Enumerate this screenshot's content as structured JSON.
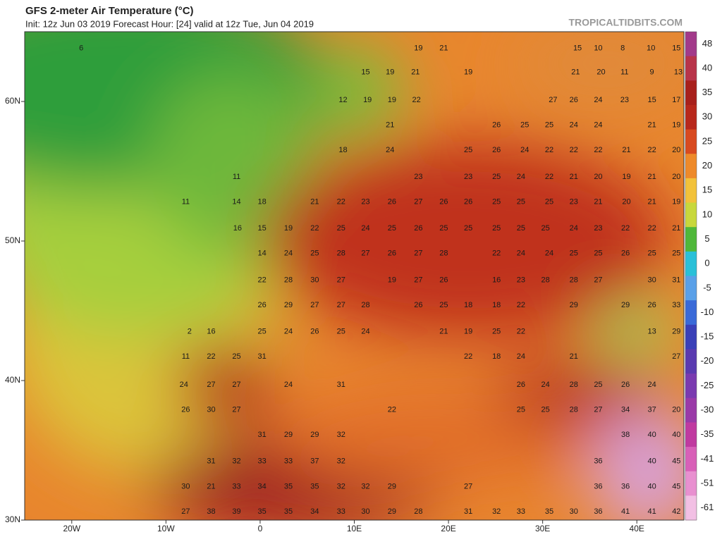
{
  "header": {
    "title": "GFS 2-meter Air Temperature (°C)",
    "subtitle": "Init: 12z Jun 03 2019   Forecast Hour: [24]   valid at 12z Tue, Jun 04 2019",
    "credit": "TROPICALTIDBITS.COM"
  },
  "chart_data": {
    "type": "map",
    "xlim": [
      -25,
      45
    ],
    "ylim": [
      30,
      65
    ],
    "xticks": [
      {
        "value": -20,
        "label": "20W"
      },
      {
        "value": -10,
        "label": "10W"
      },
      0,
      {
        "value": 10,
        "label": "10E"
      },
      {
        "value": 20,
        "label": "20E"
      },
      {
        "value": 30,
        "label": "30E"
      },
      {
        "value": 40,
        "label": "40E"
      }
    ],
    "yticks": [
      {
        "value": 30,
        "label": "30N"
      },
      {
        "value": 40,
        "label": "40N"
      },
      {
        "value": 50,
        "label": "50N"
      },
      {
        "value": 60,
        "label": "60N"
      }
    ],
    "colorbar": {
      "ticks": [
        48,
        40,
        35,
        30,
        25,
        20,
        15,
        10,
        5,
        0,
        -5,
        -10,
        -15,
        -20,
        -25,
        -30,
        -35,
        -41,
        -51,
        -61
      ],
      "colors": [
        "#a23a8a",
        "#b8344a",
        "#a8201c",
        "#b8281c",
        "#d84a20",
        "#ee8a2a",
        "#f2c23a",
        "#c8d83c",
        "#4fb83a",
        "#2ac0d8",
        "#5aa0e8",
        "#3a6ad8",
        "#3a40b8",
        "#5a3ab0",
        "#7a3ab0",
        "#9a3aa8",
        "#c03aa0",
        "#d860b8",
        "#e890d0",
        "#f2c0e4"
      ]
    },
    "rows": [
      {
        "lat": 63.8,
        "lon": [
          -19.0,
          16.8,
          19.5,
          33.7,
          35.9,
          38.5,
          41.5,
          44.2
        ],
        "values": [
          6,
          19,
          21,
          15,
          10,
          8,
          10,
          15
        ]
      },
      {
        "lat": 62.1,
        "lon": [
          11.2,
          13.8,
          16.5,
          22.1,
          33.5,
          36.2,
          38.7,
          41.6,
          44.4
        ],
        "values": [
          15,
          19,
          21,
          19,
          21,
          20,
          11,
          9,
          13
        ]
      },
      {
        "lat": 60.1,
        "lon": [
          8.8,
          11.4,
          14.0,
          16.6,
          31.1,
          33.3,
          35.9,
          38.7,
          41.6,
          44.2
        ],
        "values": [
          12,
          19,
          19,
          22,
          27,
          26,
          24,
          23,
          15,
          17
        ]
      },
      {
        "lat": 58.3,
        "lon": [
          13.8,
          25.1,
          28.1,
          30.7,
          33.3,
          35.9,
          41.6,
          44.2
        ],
        "values": [
          21,
          26,
          25,
          25,
          24,
          24,
          21,
          19
        ]
      },
      {
        "lat": 56.5,
        "lon": [
          8.8,
          13.8,
          22.1,
          25.1,
          28.1,
          30.7,
          33.3,
          35.9,
          38.9,
          41.6,
          44.2
        ],
        "values": [
          18,
          24,
          25,
          26,
          24,
          22,
          22,
          22,
          21,
          22,
          20
        ]
      },
      {
        "lat": 54.6,
        "lon": [
          -2.5,
          16.8,
          22.1,
          25.1,
          27.7,
          30.7,
          33.3,
          35.9,
          38.9,
          41.6,
          44.2
        ],
        "values": [
          11,
          23,
          23,
          25,
          24,
          22,
          21,
          20,
          19,
          21,
          20
        ]
      },
      {
        "lat": 52.8,
        "lon": [
          -7.9,
          -2.5,
          0.2,
          5.8,
          8.6,
          11.2,
          14.0,
          16.8,
          19.5,
          22.1,
          25.1,
          27.7,
          30.7,
          33.3,
          35.9,
          38.9,
          41.6,
          44.2
        ],
        "values": [
          11,
          14,
          18,
          21,
          22,
          23,
          26,
          27,
          26,
          26,
          25,
          25,
          25,
          23,
          21,
          20,
          21,
          19
        ]
      },
      {
        "lat": 50.9,
        "lon": [
          -2.4,
          0.2,
          3.0,
          5.8,
          8.6,
          11.2,
          14.0,
          16.8,
          19.5,
          22.1,
          25.1,
          27.7,
          30.3,
          33.3,
          35.9,
          38.8,
          41.6,
          44.2
        ],
        "values": [
          16,
          15,
          19,
          22,
          25,
          24,
          25,
          26,
          25,
          25,
          25,
          25,
          25,
          24,
          23,
          22,
          22,
          21
        ]
      },
      {
        "lat": 49.1,
        "lon": [
          0.2,
          3.0,
          5.8,
          8.6,
          11.2,
          14.0,
          16.8,
          19.5,
          25.1,
          27.7,
          30.7,
          33.3,
          35.9,
          38.8,
          41.6,
          44.2
        ],
        "values": [
          14,
          24,
          25,
          28,
          27,
          26,
          27,
          28,
          22,
          24,
          24,
          25,
          25,
          26,
          25,
          25
        ]
      },
      {
        "lat": 47.2,
        "lon": [
          0.2,
          3.0,
          5.8,
          8.6,
          14.0,
          16.8,
          19.5,
          25.1,
          27.7,
          30.3,
          33.3,
          35.9,
          41.6,
          44.2
        ],
        "values": [
          22,
          28,
          30,
          27,
          19,
          27,
          26,
          16,
          23,
          28,
          28,
          27,
          30,
          31
        ]
      },
      {
        "lat": 45.4,
        "lon": [
          0.2,
          3.0,
          5.8,
          8.6,
          11.2,
          16.8,
          19.5,
          22.1,
          25.1,
          27.7,
          33.3,
          38.8,
          41.6,
          44.2
        ],
        "values": [
          26,
          29,
          27,
          27,
          28,
          26,
          25,
          18,
          18,
          22,
          29,
          29,
          26,
          33
        ]
      },
      {
        "lat": 43.5,
        "lon": [
          -7.5,
          -5.2,
          0.2,
          3.0,
          5.8,
          8.6,
          11.2,
          19.5,
          22.1,
          25.1,
          27.7,
          41.6,
          44.2
        ],
        "values": [
          2,
          16,
          25,
          24,
          26,
          25,
          24,
          21,
          19,
          25,
          22,
          13,
          29
        ]
      },
      {
        "lat": 41.7,
        "lon": [
          -7.9,
          -5.2,
          -2.5,
          0.2,
          22.1,
          25.1,
          27.7,
          33.3,
          44.2
        ],
        "values": [
          11,
          22,
          25,
          31,
          22,
          18,
          24,
          21,
          27
        ]
      },
      {
        "lat": 39.7,
        "lon": [
          -8.1,
          -5.2,
          -2.5,
          3.0,
          8.6,
          27.7,
          30.3,
          33.3,
          35.9,
          38.8,
          41.6
        ],
        "values": [
          24,
          27,
          27,
          24,
          31,
          26,
          24,
          28,
          25,
          26,
          24
        ]
      },
      {
        "lat": 37.9,
        "lon": [
          -7.9,
          -5.2,
          -2.5,
          14.0,
          27.7,
          30.3,
          33.3,
          35.9,
          38.8,
          41.6,
          44.2
        ],
        "values": [
          26,
          30,
          27,
          22,
          25,
          25,
          28,
          27,
          34,
          37,
          20
        ]
      },
      {
        "lat": 36.1,
        "lon": [
          0.2,
          3.0,
          5.8,
          8.6,
          38.8,
          41.6,
          44.2
        ],
        "values": [
          31,
          29,
          29,
          32,
          38,
          40,
          40
        ]
      },
      {
        "lat": 34.2,
        "lon": [
          -5.2,
          -2.5,
          0.2,
          3.0,
          5.8,
          8.6,
          35.9,
          41.6,
          44.2
        ],
        "values": [
          31,
          32,
          33,
          33,
          37,
          32,
          36,
          40,
          45
        ]
      },
      {
        "lat": 32.4,
        "lon": [
          -7.9,
          -5.2,
          -2.5,
          0.2,
          3.0,
          5.8,
          8.6,
          11.2,
          14.0,
          22.1,
          35.9,
          38.8,
          41.6,
          44.2
        ],
        "values": [
          30,
          21,
          33,
          34,
          35,
          35,
          32,
          32,
          29,
          27,
          36,
          36,
          40,
          45
        ]
      },
      {
        "lat": 30.6,
        "lon": [
          -7.9,
          -5.2,
          -2.5,
          0.2,
          3.0,
          5.8,
          8.6,
          11.2,
          14.0,
          16.8,
          22.1,
          25.1,
          27.7,
          30.7,
          33.3,
          35.9,
          38.8,
          41.6,
          44.2
        ],
        "values": [
          27,
          38,
          39,
          35,
          35,
          34,
          33,
          30,
          29,
          28,
          31,
          32,
          33,
          35,
          30,
          36,
          41,
          41,
          42
        ]
      }
    ]
  }
}
